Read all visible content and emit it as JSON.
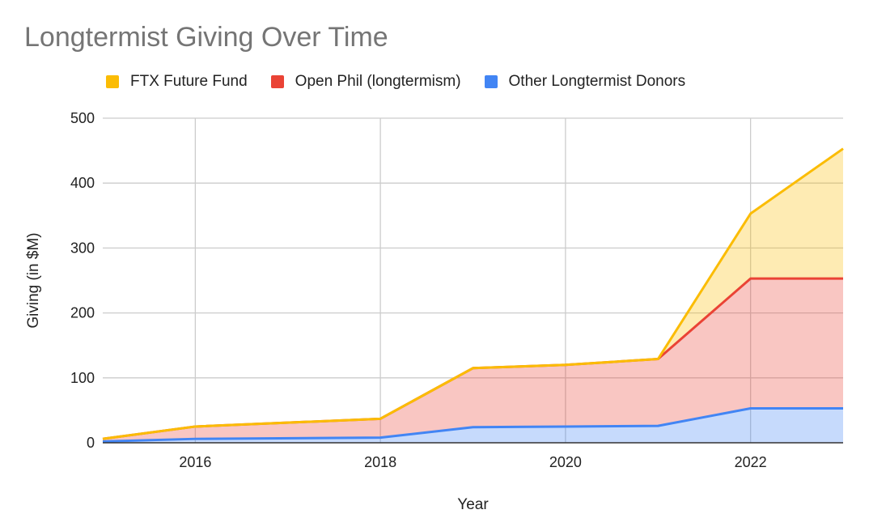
{
  "chart_data": {
    "type": "area",
    "stacked": true,
    "title": "Longtermist Giving Over Time",
    "xlabel": "Year",
    "ylabel": "Giving (in $M)",
    "x": [
      2015,
      2016,
      2018,
      2019,
      2020,
      2021,
      2022,
      2023
    ],
    "xlim": [
      2015,
      2023
    ],
    "ylim": [
      0,
      500
    ],
    "x_ticks": [
      "2016",
      "2018",
      "2020",
      "2022"
    ],
    "y_ticks": [
      "0",
      "100",
      "200",
      "300",
      "400",
      "500"
    ],
    "grid": true,
    "legend_position": "top",
    "series": [
      {
        "name": "Other Longtermist Donors",
        "color": "#4285f4",
        "values": [
          2,
          6,
          8,
          24,
          25,
          26,
          53,
          53
        ]
      },
      {
        "name": "Open Phil (longtermism)",
        "color": "#ea4335",
        "values": [
          4,
          19,
          29,
          91,
          95,
          103,
          200,
          200
        ]
      },
      {
        "name": "FTX Future Fund",
        "color": "#fbbc04",
        "values": [
          0,
          0,
          0,
          0,
          0,
          0,
          100,
          200
        ]
      }
    ]
  },
  "legend": {
    "items": [
      {
        "label": "FTX Future Fund",
        "color": "#fbbc04"
      },
      {
        "label": "Open Phil (longtermism)",
        "color": "#ea4335"
      },
      {
        "label": "Other Longtermist Donors",
        "color": "#4285f4"
      }
    ]
  },
  "colors": {
    "title": "#757575",
    "grid": "#cccccc",
    "text": "#222222"
  }
}
